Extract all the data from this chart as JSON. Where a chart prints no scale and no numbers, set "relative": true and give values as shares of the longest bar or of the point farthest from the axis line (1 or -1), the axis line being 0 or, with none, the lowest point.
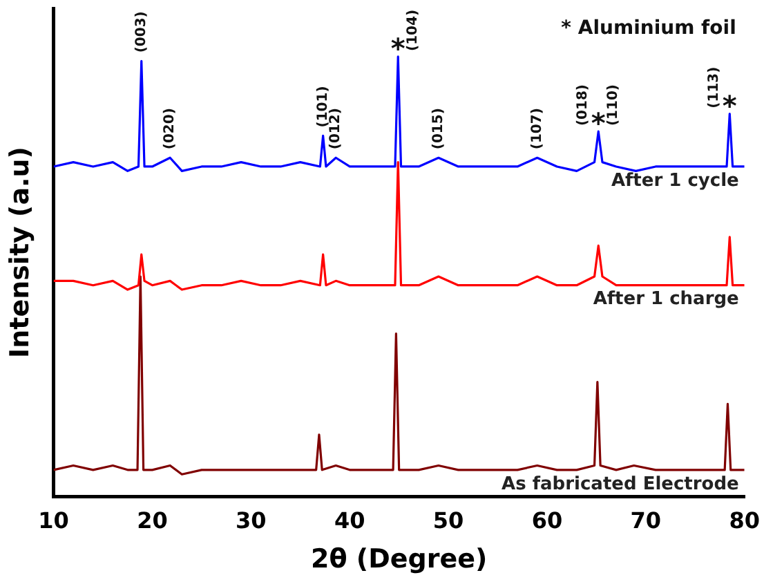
{
  "chart_data": {
    "type": "line",
    "relative": true,
    "xlabel": "2θ (Degree)",
    "ylabel": "Intensity (a.u)",
    "xlim": [
      10,
      80
    ],
    "xticks": [
      10,
      20,
      30,
      40,
      50,
      60,
      70,
      80
    ],
    "grid": false,
    "legend": false,
    "marker": "none",
    "line_style": "solid",
    "series": [
      {
        "name": "After 1 cycle",
        "color": "#0000ff",
        "x": [
          10,
          12,
          14,
          16,
          17.5,
          18.6,
          18.9,
          19.2,
          20,
          21.8,
          23,
          25,
          27,
          29,
          31,
          33,
          35,
          37,
          37.3,
          37.6,
          38.6,
          40,
          42,
          44.6,
          44.9,
          45.2,
          47,
          49,
          51,
          53,
          55,
          57,
          59,
          61,
          63,
          64.8,
          65.2,
          65.6,
          67,
          69,
          71,
          73,
          75,
          78.2,
          78.5,
          78.8,
          80
        ],
        "values": [
          0.75,
          0.76,
          0.75,
          0.76,
          0.74,
          0.75,
          0.99,
          0.75,
          0.75,
          0.77,
          0.74,
          0.75,
          0.75,
          0.76,
          0.75,
          0.75,
          0.76,
          0.75,
          0.82,
          0.75,
          0.77,
          0.75,
          0.75,
          0.75,
          1.0,
          0.75,
          0.75,
          0.77,
          0.75,
          0.75,
          0.75,
          0.75,
          0.77,
          0.75,
          0.74,
          0.76,
          0.83,
          0.76,
          0.75,
          0.74,
          0.75,
          0.75,
          0.75,
          0.75,
          0.87,
          0.75,
          0.75
        ]
      },
      {
        "name": "After 1 charge",
        "color": "#ff0000",
        "x": [
          10,
          12,
          14,
          16,
          17.5,
          18.6,
          18.9,
          19.2,
          20,
          21.8,
          23,
          25,
          27,
          29,
          31,
          33,
          35,
          37,
          37.3,
          37.6,
          38.6,
          40,
          42,
          44.6,
          44.9,
          45.2,
          47,
          49,
          51,
          53,
          55,
          57,
          59,
          61,
          63,
          64.8,
          65.2,
          65.6,
          67,
          69,
          71,
          73,
          75,
          78.2,
          78.5,
          78.8,
          80
        ],
        "values": [
          0.49,
          0.49,
          0.48,
          0.49,
          0.47,
          0.48,
          0.55,
          0.49,
          0.48,
          0.49,
          0.47,
          0.48,
          0.48,
          0.49,
          0.48,
          0.48,
          0.49,
          0.48,
          0.55,
          0.48,
          0.49,
          0.48,
          0.48,
          0.48,
          0.76,
          0.48,
          0.48,
          0.5,
          0.48,
          0.48,
          0.48,
          0.48,
          0.5,
          0.48,
          0.48,
          0.5,
          0.57,
          0.5,
          0.48,
          0.48,
          0.48,
          0.48,
          0.48,
          0.48,
          0.59,
          0.48,
          0.48
        ]
      },
      {
        "name": "As fabricated Electrode",
        "color": "#800000",
        "x": [
          10,
          12,
          14,
          16,
          17.5,
          18.5,
          18.8,
          19.1,
          20,
          21.8,
          23,
          25,
          27,
          29,
          31,
          33,
          35,
          36.6,
          36.9,
          37.2,
          38.6,
          40,
          42,
          44.4,
          44.7,
          45,
          47,
          49,
          51,
          53,
          55,
          57,
          59,
          61,
          63,
          64.8,
          65.1,
          65.4,
          67,
          68.8,
          71,
          73,
          75,
          78,
          78.3,
          78.6,
          80
        ],
        "values": [
          0.06,
          0.07,
          0.06,
          0.07,
          0.06,
          0.06,
          0.5,
          0.06,
          0.06,
          0.07,
          0.05,
          0.06,
          0.06,
          0.06,
          0.06,
          0.06,
          0.06,
          0.06,
          0.14,
          0.06,
          0.07,
          0.06,
          0.06,
          0.06,
          0.37,
          0.06,
          0.06,
          0.07,
          0.06,
          0.06,
          0.06,
          0.06,
          0.07,
          0.06,
          0.06,
          0.07,
          0.26,
          0.07,
          0.06,
          0.07,
          0.06,
          0.06,
          0.06,
          0.06,
          0.21,
          0.06,
          0.06
        ]
      }
    ],
    "annotations": [
      "* Aluminium foil",
      {
        "text": "(003)",
        "x": 18.9,
        "y": 0.99
      },
      {
        "text": "(020)",
        "x": 21.8,
        "y": 0.77
      },
      {
        "text": "(101)",
        "x": 37.3,
        "y": 0.82
      },
      {
        "text": "(012)",
        "x": 38.6,
        "y": 0.77
      },
      {
        "text": "*",
        "x": 44.9,
        "y": 1.0
      },
      {
        "text": "(104)",
        "x": 44.9,
        "y": 1.0
      },
      {
        "text": "(015)",
        "x": 49,
        "y": 0.77
      },
      {
        "text": "(107)",
        "x": 59,
        "y": 0.77
      },
      {
        "text": "(018)",
        "x": 65.2,
        "y": 0.83
      },
      {
        "text": "*",
        "x": 65.2,
        "y": 0.83
      },
      {
        "text": "(110)",
        "x": 65.2,
        "y": 0.83
      },
      {
        "text": "(113)",
        "x": 78.5,
        "y": 0.87
      },
      {
        "text": "*",
        "x": 78.5,
        "y": 0.87
      }
    ]
  }
}
